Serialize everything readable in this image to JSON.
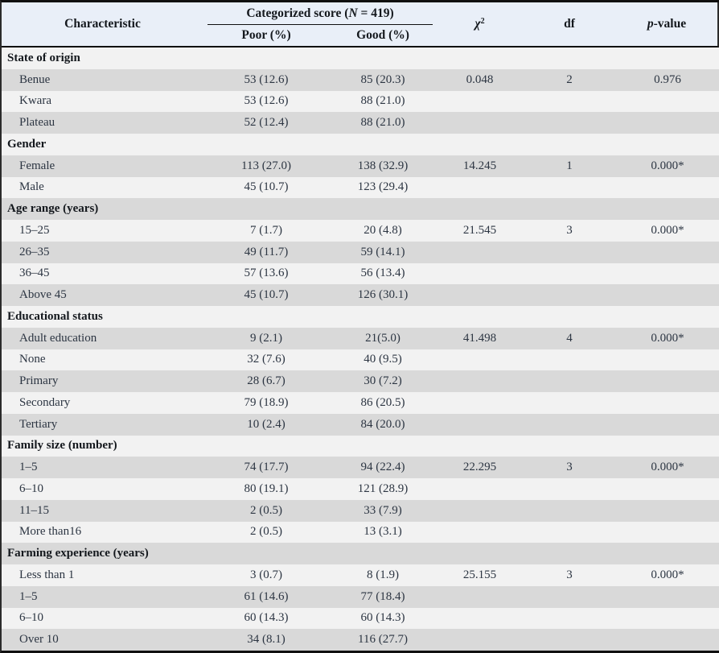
{
  "colors": {
    "header_bg": "#e9eff8",
    "row_gray": "#d9d9d9",
    "row_light": "#f2f2f2",
    "line_black": "#101010",
    "edge_dark": "#2b2b2b",
    "text_dark": "#14181d",
    "text_body": "#2c3542"
  },
  "table": {
    "header": {
      "characteristic": "Characteristic",
      "span_prefix": "Categorized score (",
      "span_var": "N",
      "span_suffix": " = 419)",
      "poor": "Poor (%)",
      "good": "Good (%)",
      "chi_symbol": "χ",
      "chi_sup": "2",
      "df": "df",
      "p_var": "p",
      "p_suffix": "-value"
    },
    "sections": [
      {
        "title": "State of origin",
        "rows": [
          {
            "label": "Benue",
            "poor": "53 (12.6)",
            "good": "85 (20.3)",
            "chi": "0.048",
            "df": "2",
            "p": "0.976"
          },
          {
            "label": "Kwara",
            "poor": "53 (12.6)",
            "good": "88 (21.0)",
            "chi": "",
            "df": "",
            "p": ""
          },
          {
            "label": "Plateau",
            "poor": "52 (12.4)",
            "good": "88 (21.0)",
            "chi": "",
            "df": "",
            "p": ""
          }
        ]
      },
      {
        "title": "Gender",
        "rows": [
          {
            "label": "Female",
            "poor": "113 (27.0)",
            "good": "138 (32.9)",
            "chi": "14.245",
            "df": "1",
            "p": "0.000*"
          },
          {
            "label": "Male",
            "poor": "45 (10.7)",
            "good": "123 (29.4)",
            "chi": "",
            "df": "",
            "p": ""
          }
        ]
      },
      {
        "title": "Age range (years)",
        "rows": [
          {
            "label": "15–25",
            "poor": "7 (1.7)",
            "good": "20 (4.8)",
            "chi": "21.545",
            "df": "3",
            "p": "0.000*"
          },
          {
            "label": "26–35",
            "poor": "49 (11.7)",
            "good": "59 (14.1)",
            "chi": "",
            "df": "",
            "p": ""
          },
          {
            "label": "36–45",
            "poor": "57 (13.6)",
            "good": "56 (13.4)",
            "chi": "",
            "df": "",
            "p": ""
          },
          {
            "label": "Above 45",
            "poor": "45 (10.7)",
            "good": "126 (30.1)",
            "chi": "",
            "df": "",
            "p": ""
          }
        ]
      },
      {
        "title": "Educational status",
        "rows": [
          {
            "label": "Adult education",
            "poor": "9 (2.1)",
            "good": "21(5.0)",
            "chi": "41.498",
            "df": "4",
            "p": "0.000*"
          },
          {
            "label": "None",
            "poor": "32 (7.6)",
            "good": "40 (9.5)",
            "chi": "",
            "df": "",
            "p": ""
          },
          {
            "label": "Primary",
            "poor": "28 (6.7)",
            "good": "30 (7.2)",
            "chi": "",
            "df": "",
            "p": ""
          },
          {
            "label": "Secondary",
            "poor": "79 (18.9)",
            "good": "86 (20.5)",
            "chi": "",
            "df": "",
            "p": ""
          },
          {
            "label": "Tertiary",
            "poor": "10 (2.4)",
            "good": "84 (20.0)",
            "chi": "",
            "df": "",
            "p": ""
          }
        ]
      },
      {
        "title": "Family size (number)",
        "rows": [
          {
            "label": "1–5",
            "poor": "74 (17.7)",
            "good": "94 (22.4)",
            "chi": "22.295",
            "df": "3",
            "p": "0.000*"
          },
          {
            "label": "6–10",
            "poor": "80 (19.1)",
            "good": "121 (28.9)",
            "chi": "",
            "df": "",
            "p": ""
          },
          {
            "label": "11–15",
            "poor": "2 (0.5)",
            "good": "33 (7.9)",
            "chi": "",
            "df": "",
            "p": ""
          },
          {
            "label": "More than16",
            "poor": "2 (0.5)",
            "good": "13 (3.1)",
            "chi": "",
            "df": "",
            "p": ""
          }
        ]
      },
      {
        "title": "Farming experience (years)",
        "rows": [
          {
            "label": "Less than 1",
            "poor": "3 (0.7)",
            "good": "8 (1.9)",
            "chi": "25.155",
            "df": "3",
            "p": "0.000*"
          },
          {
            "label": "1–5",
            "poor": "61 (14.6)",
            "good": "77 (18.4)",
            "chi": "",
            "df": "",
            "p": ""
          },
          {
            "label": "6–10",
            "poor": "60 (14.3)",
            "good": "60 (14.3)",
            "chi": "",
            "df": "",
            "p": ""
          },
          {
            "label": "Over 10",
            "poor": "34 (8.1)",
            "good": "116 (27.7)",
            "chi": "",
            "df": "",
            "p": ""
          }
        ]
      }
    ]
  }
}
